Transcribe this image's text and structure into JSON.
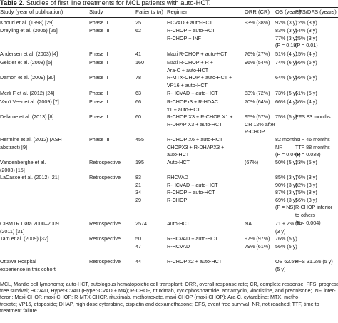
{
  "caption": {
    "label": "Table 2.",
    "text": " Studies of first line treatments for MCL patients with auto-HCT."
  },
  "headers": {
    "study": "Study (year of publication)",
    "phase": "Study",
    "patients": "Patients (n)",
    "regimen": "Regimen",
    "orr": "ORR (CR)",
    "os": "OS (years)",
    "pfs": "PFS/DFS (years)"
  },
  "rows": [
    {
      "study": [
        "Khouri et al. (1998) [29]"
      ],
      "phase": [
        "Phase II"
      ],
      "patients": [
        "25"
      ],
      "regimen": [
        "HCVAD + auto-HCT"
      ],
      "orr": [
        "93% (38%)"
      ],
      "os": [
        "92% (3 y)"
      ],
      "pfs": [
        "72% (3 y)"
      ]
    },
    {
      "study": [
        "Dreyling et al. (2005) [25]"
      ],
      "phase": [
        "Phase III"
      ],
      "patients": [
        "62"
      ],
      "regimen": [
        "R-CHOP + auto-HCT",
        "R-CHOP + INF"
      ],
      "orr": [],
      "os": [
        "83% (3 y)",
        "77% (3 y)",
        "(P = 0.18)"
      ],
      "pfs": [
        "54% (3 y)",
        "25% (3 y)",
        "(P = 0.01)"
      ]
    },
    {
      "study": [
        "Andersen et al. (2003) [4]"
      ],
      "phase": [
        "Phase II"
      ],
      "patients": [
        "41"
      ],
      "regimen": [
        "Maxi R-CHOP + auto-HCT"
      ],
      "orr": [
        "76% (27%)"
      ],
      "os": [
        "51% (4 y)"
      ],
      "pfs": [
        "15% (4 y)"
      ]
    },
    {
      "study": [
        "Geisler et al. (2008) [5]"
      ],
      "phase": [
        "Phase II"
      ],
      "patients": [
        "160"
      ],
      "regimen": [
        "Maxi R-CHOP + R +",
        "Ara-C + auto-HCT"
      ],
      "orr": [
        "96% (54%)"
      ],
      "os": [
        "74% (6 y)"
      ],
      "pfs": [
        "66% (6 y)"
      ]
    },
    {
      "study": [
        "Damon et al. (2009) [30]"
      ],
      "phase": [
        "Phase II"
      ],
      "patients": [
        "78"
      ],
      "regimen": [
        "R-MTX-CHOP + auto-HCT +",
        "VP16 + auto-HCT"
      ],
      "orr": [],
      "os": [
        "64% (5 y)"
      ],
      "pfs": [
        "56% (5 y)"
      ]
    },
    {
      "study": [
        "Merli F et al. (2012) [24]"
      ],
      "phase": [
        "Phase II"
      ],
      "patients": [
        "63"
      ],
      "regimen": [
        "R-HCVAD + auto-HCT"
      ],
      "orr": [
        "83% (72%)"
      ],
      "os": [
        "73% (5 y)"
      ],
      "pfs": [
        "61% (5 y)"
      ]
    },
    {
      "study": [
        "Van't Veer et al. (2009) [7]"
      ],
      "phase": [
        "Phase II"
      ],
      "patients": [
        "66"
      ],
      "regimen": [
        "R-CHOPx3 + R-HDAC",
        "x1 + auto-HCT"
      ],
      "orr": [
        "70% (64%)"
      ],
      "os": [
        "66% (4 y)"
      ],
      "pfs": [
        "36% (4 y)"
      ]
    },
    {
      "study": [
        "Delarue et al. (2013) [8]"
      ],
      "phase": [
        "Phase II"
      ],
      "patients": [
        "60"
      ],
      "regimen": [
        "R-CHOP X3 + R-CHOP X1 +",
        "R-DHAP X3 + auto-HCT"
      ],
      "orr": [
        "95% (57%)",
        "CR 12% after",
        "R-CHOP"
      ],
      "os": [
        "75% (5 y)"
      ],
      "pfs": [
        "EFS 83 months"
      ]
    },
    {
      "study": [
        "Hermine et al. (2012) (ASH",
        "abstract) [9]"
      ],
      "phase": [
        "Phase III"
      ],
      "patients": [
        "455"
      ],
      "regimen": [
        "R-CHOP X6 + auto-HCT",
        "CHOPX3 + R-DHAPX3 +",
        "auto-HCT"
      ],
      "orr": [],
      "os": [
        "82 months",
        "NR",
        "(P = 0.045)"
      ],
      "pfs": [
        "TTF 46 months",
        "TTF 88 months",
        "(P = 0.038)"
      ]
    },
    {
      "study": [
        "Vandenberghe et al.",
        "(2003) [15]"
      ],
      "phase": [
        "Retrospective"
      ],
      "patients": [
        "195"
      ],
      "regimen": [
        "Auto-HCT"
      ],
      "orr": [
        "(67%)"
      ],
      "os": [
        "50% (5 y)"
      ],
      "pfs": [
        "33% (5 y)"
      ]
    },
    {
      "study": [
        "LaCasce et al. (2012) [21]"
      ],
      "phase": [
        "Retrospective"
      ],
      "patients": [
        "83",
        "21",
        "34",
        "29"
      ],
      "regimen": [
        "RHCVAD",
        "R-HCVAD + auto-HCT",
        "R-CHOP + auto-HCT",
        "R-CHOP"
      ],
      "orr": [],
      "os": [
        "85% (3 y)",
        "90% (3 y)",
        "87% (3 y)",
        "69% (3 y)",
        "(P = NS)"
      ],
      "pfs": [
        "76% (3 y)",
        "82% (3 y)",
        "75% (3 y)",
        "56% (3 y)",
        "R-CHOP inferior",
        "to others",
        "(P < 0.004)"
      ]
    },
    {
      "study": [
        "CIBMTR Data 2000–2009",
        "(2011) [31]"
      ],
      "phase": [
        "Retrospective"
      ],
      "patients": [
        "2574"
      ],
      "regimen": [
        "Auto-HCT"
      ],
      "orr": [
        "NA"
      ],
      "os": [
        "71 ± 2%",
        "(3 y)"
      ],
      "pfs": [
        "NA"
      ]
    },
    {
      "study": [
        "Tam et al. (2009) [32]"
      ],
      "phase": [
        "Retrospective"
      ],
      "patients": [
        "50",
        "47"
      ],
      "regimen": [
        "R-HCVAD + auto-HCT",
        "R-HCVAD"
      ],
      "orr": [
        "97% (97%)",
        "79% (61%)"
      ],
      "os": [
        "76% (5 y)",
        "56% (5 y)"
      ],
      "pfs": [
        "",
        ""
      ]
    },
    {
      "study": [
        "Ottawa Hospital",
        "experience in this cohort"
      ],
      "phase": [
        "Retrospective"
      ],
      "patients": [
        "44"
      ],
      "regimen": [
        "R-CHOP x2 + auto-HCT"
      ],
      "orr": [],
      "os": [
        "OS 62.5%",
        "(5 y)"
      ],
      "pfs": [
        "PFS 31.2% (5 y)"
      ]
    }
  ],
  "footnote": [
    "MCL, Mantle cell lymphoma; auto-HCT, autologous hematopoietic cell transplant; ORR, overall response rate; CR, complete response; PFS, progression-",
    "free survival; HCVAD, Hyper-CVAD (Hyper-CVAD + MA); R-CHOP, rituximab, cyclophosphamide, adriamycin, vincristine, and prednisone; INF, inter-",
    "feron; Maxi-CHOP, maxi-CHOP; R-MTX-CHOP, rituximab, methotrexate, maxi-CHOP (maxi-CHOP); Ara-C, cytarabine; MTX, metho-",
    "trexate; VP16, etoposide; DHAP, high dose cytarabine, cisplatin and dexamethasone; EFS, event free survival; NR, not reached; TTF, time to",
    "treatment failure."
  ]
}
